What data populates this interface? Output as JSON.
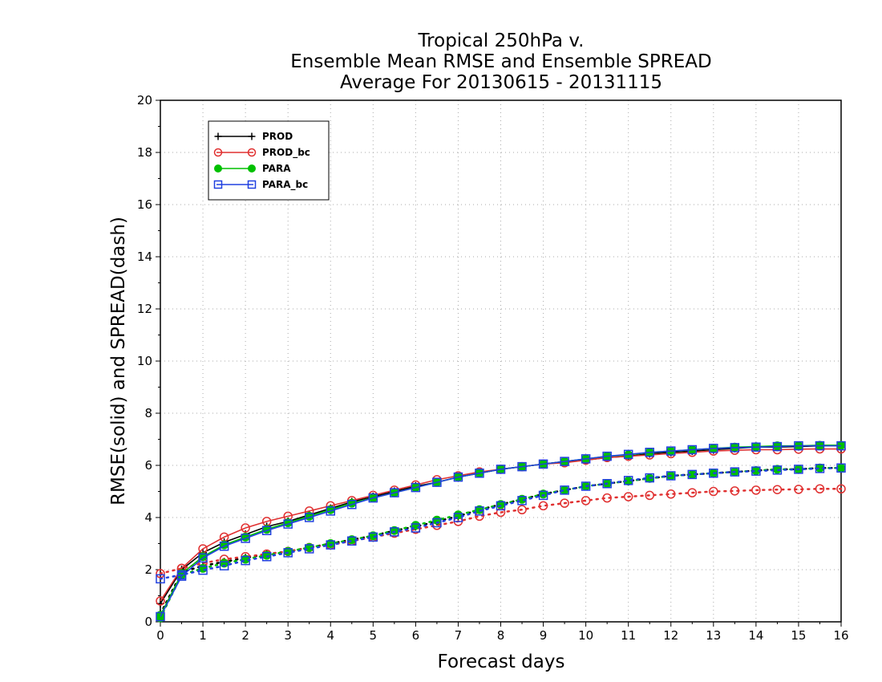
{
  "chart_data": {
    "type": "line",
    "title_lines": [
      "Tropical 250hPa v.",
      "Ensemble Mean RMSE and Ensemble SPREAD",
      "Average For 20130615 - 20131115"
    ],
    "xlabel": "Forecast days",
    "ylabel": "RMSE(solid) and SPREAD(dash)",
    "xlim": [
      0,
      16
    ],
    "ylim": [
      0,
      20
    ],
    "xticks": [
      0,
      1,
      2,
      3,
      4,
      5,
      6,
      7,
      8,
      9,
      10,
      11,
      12,
      13,
      14,
      15,
      16
    ],
    "yticks": [
      0,
      2,
      4,
      6,
      8,
      10,
      12,
      14,
      16,
      18,
      20
    ],
    "grid": true,
    "legend_position": "top-left",
    "x": [
      0,
      0.5,
      1,
      1.5,
      2,
      2.5,
      3,
      3.5,
      4,
      4.5,
      5,
      5.5,
      6,
      6.5,
      7,
      7.5,
      8,
      8.5,
      9,
      9.5,
      10,
      10.5,
      11,
      11.5,
      12,
      12.5,
      13,
      13.5,
      14,
      14.5,
      15,
      15.5,
      16
    ],
    "series": [
      {
        "name": "PROD",
        "color": "#000000",
        "marker": "plus",
        "rmse": [
          0.7,
          2.0,
          2.65,
          3.05,
          3.35,
          3.65,
          3.85,
          4.1,
          4.35,
          4.6,
          4.8,
          5.0,
          5.2,
          5.35,
          5.55,
          5.7,
          5.85,
          5.95,
          6.05,
          6.15,
          6.2,
          6.3,
          6.35,
          6.45,
          6.5,
          6.55,
          6.6,
          6.65,
          6.7,
          6.7,
          6.72,
          6.75,
          6.75
        ],
        "spread": [
          0.3,
          1.9,
          2.15,
          2.3,
          2.45,
          2.6,
          2.7,
          2.85,
          3.0,
          3.15,
          3.3,
          3.5,
          3.65,
          3.85,
          4.05,
          4.3,
          4.5,
          4.7,
          4.9,
          5.05,
          5.2,
          5.3,
          5.4,
          5.5,
          5.6,
          5.65,
          5.7,
          5.75,
          5.8,
          5.85,
          5.85,
          5.9,
          5.9
        ]
      },
      {
        "name": "PROD_bc",
        "color": "#e03030",
        "marker": "circle",
        "rmse": [
          0.8,
          2.05,
          2.8,
          3.25,
          3.6,
          3.85,
          4.05,
          4.25,
          4.45,
          4.65,
          4.85,
          5.05,
          5.25,
          5.45,
          5.6,
          5.75,
          5.85,
          5.95,
          6.05,
          6.1,
          6.2,
          6.3,
          6.35,
          6.4,
          6.45,
          6.5,
          6.55,
          6.58,
          6.6,
          6.6,
          6.62,
          6.63,
          6.63
        ],
        "spread": [
          1.85,
          2.05,
          2.25,
          2.4,
          2.5,
          2.6,
          2.7,
          2.85,
          2.95,
          3.1,
          3.25,
          3.4,
          3.55,
          3.7,
          3.85,
          4.05,
          4.2,
          4.3,
          4.45,
          4.55,
          4.65,
          4.75,
          4.8,
          4.85,
          4.9,
          4.95,
          5.0,
          5.02,
          5.05,
          5.07,
          5.08,
          5.1,
          5.1
        ]
      },
      {
        "name": "PARA",
        "color": "#00c000",
        "marker": "filled-circle",
        "rmse": [
          0.25,
          1.85,
          2.5,
          2.95,
          3.25,
          3.55,
          3.8,
          4.05,
          4.3,
          4.55,
          4.75,
          4.95,
          5.15,
          5.35,
          5.55,
          5.7,
          5.85,
          5.95,
          6.05,
          6.15,
          6.25,
          6.35,
          6.4,
          6.5,
          6.55,
          6.6,
          6.65,
          6.7,
          6.72,
          6.75,
          6.75,
          6.77,
          6.77
        ],
        "spread": [
          0.15,
          1.8,
          2.05,
          2.25,
          2.4,
          2.55,
          2.7,
          2.85,
          3.0,
          3.15,
          3.3,
          3.5,
          3.7,
          3.9,
          4.1,
          4.3,
          4.5,
          4.7,
          4.9,
          5.05,
          5.2,
          5.3,
          5.4,
          5.5,
          5.6,
          5.65,
          5.7,
          5.75,
          5.8,
          5.85,
          5.85,
          5.9,
          5.9
        ]
      },
      {
        "name": "PARA_bc",
        "color": "#2040e0",
        "marker": "square",
        "rmse": [
          0.2,
          1.75,
          2.45,
          2.9,
          3.2,
          3.5,
          3.75,
          4.0,
          4.25,
          4.5,
          4.75,
          4.95,
          5.15,
          5.35,
          5.55,
          5.7,
          5.85,
          5.95,
          6.05,
          6.15,
          6.25,
          6.35,
          6.42,
          6.5,
          6.55,
          6.6,
          6.65,
          6.68,
          6.7,
          6.72,
          6.75,
          6.75,
          6.75
        ],
        "spread": [
          1.65,
          1.8,
          1.98,
          2.15,
          2.35,
          2.5,
          2.65,
          2.8,
          2.95,
          3.1,
          3.25,
          3.45,
          3.6,
          3.8,
          4.0,
          4.25,
          4.45,
          4.65,
          4.85,
          5.05,
          5.2,
          5.3,
          5.42,
          5.52,
          5.6,
          5.65,
          5.7,
          5.75,
          5.78,
          5.82,
          5.85,
          5.88,
          5.9
        ]
      }
    ]
  }
}
